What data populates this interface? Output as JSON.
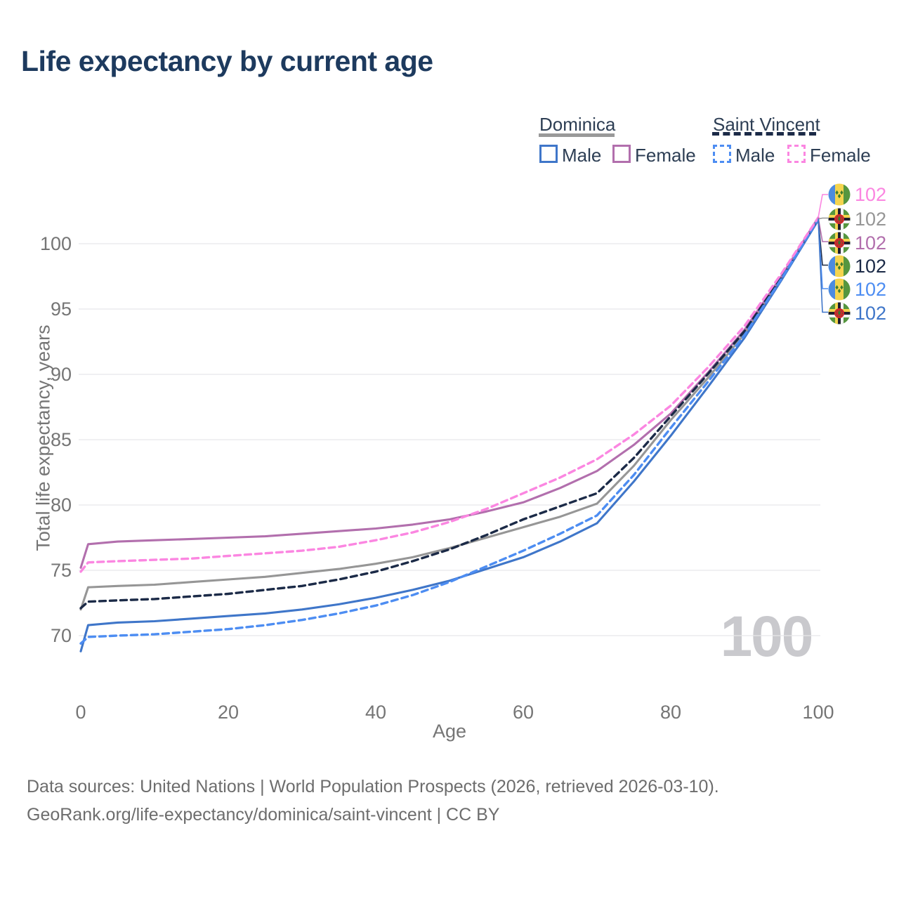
{
  "title": "Life expectancy by current age",
  "watermark": "100",
  "legend": {
    "dominica": {
      "label": "Dominica",
      "male": "Male",
      "female": "Female",
      "line_color": "#999999",
      "line_style": "solid"
    },
    "saint_vincent": {
      "label": "Saint Vincent",
      "male": "Male",
      "female": "Female",
      "line_color": "#1b2a47",
      "line_style": "dashed"
    }
  },
  "colors": {
    "dom_male": "#3f76c9",
    "dom_female": "#b26fad",
    "dom_total": "#969696",
    "sv_male": "#4d8df2",
    "sv_female": "#fb86e1",
    "sv_total": "#1b2a47",
    "grid": "#e7e7e9",
    "title_text": "#1d3a5e",
    "axis_text": "#757575"
  },
  "end_labels": [
    {
      "value": "102",
      "flag": "saint-vincent",
      "series_key": "sv_female",
      "color": "#fb86e1"
    },
    {
      "value": "102",
      "flag": "dominica",
      "series_key": "dom_total",
      "color": "#969696"
    },
    {
      "value": "102",
      "flag": "dominica",
      "series_key": "dom_female",
      "color": "#b26fad"
    },
    {
      "value": "102",
      "flag": "saint-vincent",
      "series_key": "sv_total",
      "color": "#1b2a47"
    },
    {
      "value": "102",
      "flag": "saint-vincent",
      "series_key": "sv_male",
      "color": "#4d8df2"
    },
    {
      "value": "102",
      "flag": "dominica",
      "series_key": "dom_male",
      "color": "#3f76c9"
    }
  ],
  "footer": {
    "line1": "Data sources: United Nations | World Population Prospects (2026, retrieved 2026-03-10).",
    "line2": "GeoRank.org/life-expectancy/dominica/saint-vincent | CC BY"
  },
  "chart_data": {
    "type": "line",
    "title": "Life expectancy by current age",
    "xlabel": "Age",
    "ylabel": "Total life expectancy, years",
    "x": [
      0,
      1,
      5,
      10,
      15,
      20,
      25,
      30,
      35,
      40,
      45,
      50,
      55,
      60,
      65,
      70,
      75,
      80,
      85,
      90,
      95,
      100
    ],
    "xticks": [
      0,
      20,
      40,
      60,
      80,
      100
    ],
    "yticks": [
      100,
      95,
      90,
      85,
      80,
      75,
      70
    ],
    "xlim": [
      0,
      100
    ],
    "ylim": [
      68,
      103
    ],
    "grid": "horizontal",
    "legend_position": "top-right",
    "series": [
      {
        "key": "dom_total",
        "name": "Dominica (both sexes)",
        "color": "#969696",
        "dash": "solid",
        "values": [
          72.0,
          73.7,
          73.8,
          73.9,
          74.1,
          74.3,
          74.5,
          74.8,
          75.1,
          75.5,
          76.0,
          76.7,
          77.5,
          78.3,
          79.1,
          80.1,
          83.0,
          86.5,
          89.7,
          93.1,
          97.3,
          101.9
        ]
      },
      {
        "key": "dom_female",
        "name": "Dominica Female",
        "color": "#b26fad",
        "dash": "solid",
        "values": [
          75.2,
          77.0,
          77.2,
          77.3,
          77.4,
          77.5,
          77.6,
          77.8,
          78.0,
          78.2,
          78.5,
          78.9,
          79.5,
          80.2,
          81.3,
          82.6,
          84.6,
          87.0,
          90.1,
          93.4,
          97.5,
          102.0
        ]
      },
      {
        "key": "dom_male",
        "name": "Dominica Male",
        "color": "#3f76c9",
        "dash": "solid",
        "values": [
          68.8,
          70.8,
          71.0,
          71.1,
          71.3,
          71.5,
          71.7,
          72.0,
          72.4,
          72.9,
          73.5,
          74.2,
          75.1,
          76.0,
          77.2,
          78.6,
          81.8,
          85.3,
          89.0,
          92.8,
          97.2,
          101.8
        ]
      },
      {
        "key": "sv_total",
        "name": "Saint Vincent (both sexes)",
        "color": "#1b2a47",
        "dash": "dashed",
        "values": [
          72.1,
          72.6,
          72.7,
          72.8,
          73.0,
          73.2,
          73.5,
          73.8,
          74.3,
          74.9,
          75.7,
          76.6,
          77.7,
          78.9,
          79.9,
          80.9,
          83.6,
          86.8,
          90.0,
          93.3,
          97.4,
          101.9
        ]
      },
      {
        "key": "sv_male",
        "name": "Saint Vincent Male",
        "color": "#4d8df2",
        "dash": "dashed",
        "values": [
          69.4,
          69.9,
          70.0,
          70.1,
          70.3,
          70.5,
          70.8,
          71.2,
          71.7,
          72.3,
          73.1,
          74.1,
          75.3,
          76.5,
          77.8,
          79.2,
          82.3,
          85.9,
          89.4,
          93.0,
          97.3,
          101.9
        ]
      },
      {
        "key": "sv_female",
        "name": "Saint Vincent Female",
        "color": "#fb86e1",
        "dash": "dashed",
        "values": [
          74.9,
          75.6,
          75.7,
          75.8,
          75.9,
          76.1,
          76.3,
          76.5,
          76.8,
          77.3,
          77.9,
          78.7,
          79.7,
          80.9,
          82.1,
          83.5,
          85.4,
          87.6,
          90.5,
          93.7,
          97.7,
          102.0
        ]
      }
    ]
  }
}
